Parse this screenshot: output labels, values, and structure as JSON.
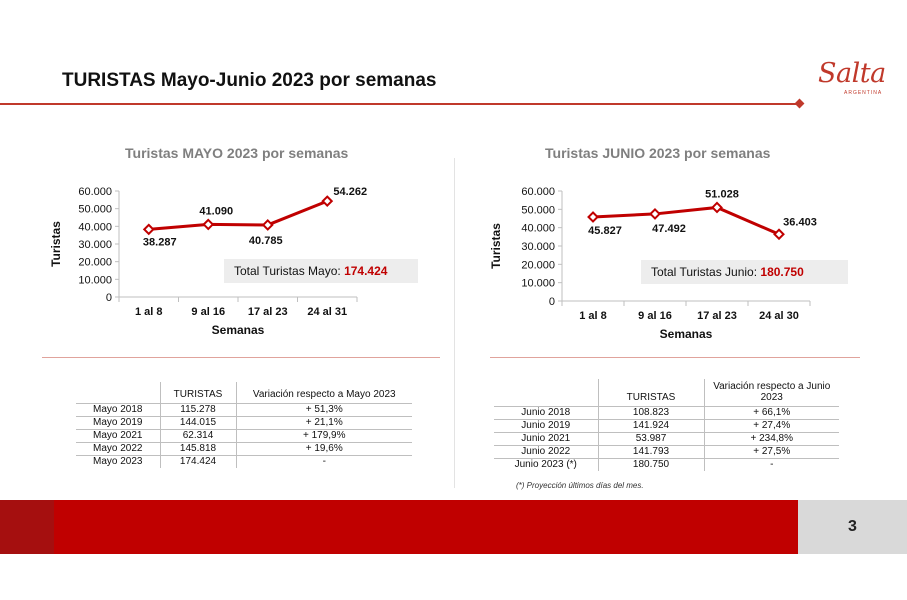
{
  "slide": {
    "title": "TURISTAS Mayo-Junio 2023 por semanas",
    "page_number": "3",
    "logo": {
      "word": "Salta",
      "sub": "ARGENTINA"
    }
  },
  "chart_data": [
    {
      "type": "line",
      "title": "Turistas MAYO 2023 por semanas",
      "xlabel": "Semanas",
      "ylabel": "Turistas",
      "categories": [
        "1 al 8",
        "9 al 16",
        "17 al 23",
        "24 al 31"
      ],
      "values": [
        38287,
        41090,
        40785,
        54262
      ],
      "value_labels": [
        "38.287",
        "41.090",
        "40.785",
        "54.262"
      ],
      "ylim": [
        0,
        60000
      ],
      "yticks": [
        "0",
        "10.000",
        "20.000",
        "30.000",
        "40.000",
        "50.000",
        "60.000"
      ],
      "color": "#c00000",
      "grid": false,
      "total_label": "Total Turistas Mayo:",
      "total_value": "174.424"
    },
    {
      "type": "line",
      "title": "Turistas JUNIO 2023 por semanas",
      "xlabel": "Semanas",
      "ylabel": "Turistas",
      "categories": [
        "1 al 8",
        "9 al 16",
        "17 al 23",
        "24 al 30"
      ],
      "values": [
        45827,
        47492,
        51028,
        36403
      ],
      "value_labels": [
        "45.827",
        "47.492",
        "51.028",
        "36.403"
      ],
      "ylim": [
        0,
        60000
      ],
      "yticks": [
        "0",
        "10.000",
        "20.000",
        "30.000",
        "40.000",
        "50.000",
        "60.000"
      ],
      "color": "#c00000",
      "grid": false,
      "total_label": "Total Turistas Junio:",
      "total_value": "180.750"
    }
  ],
  "table_mayo": {
    "headers": [
      "TURISTAS",
      "Variación respecto a Mayo 2023"
    ],
    "rows": [
      [
        "Mayo 2018",
        "115.278",
        "+ 51,3%"
      ],
      [
        "Mayo 2019",
        "144.015",
        "+ 21,1%"
      ],
      [
        "Mayo 2021",
        "62.314",
        "+ 179,9%"
      ],
      [
        "Mayo 2022",
        "145.818",
        "+ 19,6%"
      ],
      [
        "Mayo 2023",
        "174.424",
        "-"
      ]
    ]
  },
  "table_junio": {
    "headers": [
      "TURISTAS",
      "Variación respecto a Junio 2023"
    ],
    "rows": [
      [
        "Junio 2018",
        "108.823",
        "+ 66,1%"
      ],
      [
        "Junio 2019",
        "141.924",
        "+ 27,4%"
      ],
      [
        "Junio 2021",
        "53.987",
        "+ 234,8%"
      ],
      [
        "Junio 2022",
        "141.793",
        "+ 27,5%"
      ],
      [
        "Junio 2023 (*)",
        "180.750",
        "-"
      ]
    ],
    "footnote": "(*) Proyección últimos días del mes."
  },
  "colors": {
    "accent": "#c00000",
    "accent_dark": "#a50f0f",
    "title_rule": "#c0392b",
    "page_box": "#d9d9d9"
  }
}
